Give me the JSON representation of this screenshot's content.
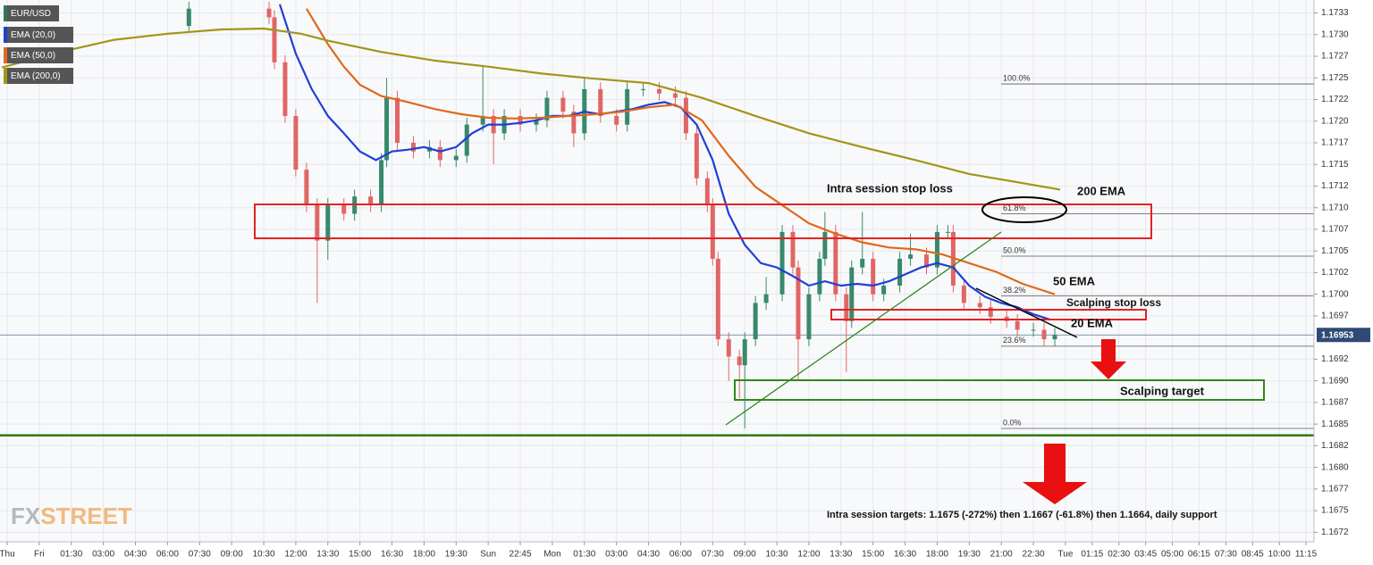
{
  "chart_data": {
    "type": "candlestick",
    "symbol": "EUR/USD",
    "xlim": [
      -1.34,
      244.5
    ],
    "ylim": [
      1.16714,
      1.1734
    ],
    "grid": true,
    "up_color": "#38896b",
    "down_color": "#e06666",
    "yticks": [
      {
        "value": 1.17325,
        "label": "1.1733"
      },
      {
        "value": 1.173,
        "label": "1.1730"
      },
      {
        "value": 1.17275,
        "label": "1.1727"
      },
      {
        "value": 1.1725,
        "label": "1.1725"
      },
      {
        "value": 1.17225,
        "label": "1.1722"
      },
      {
        "value": 1.172,
        "label": "1.1720"
      },
      {
        "value": 1.17175,
        "label": "1.1717"
      },
      {
        "value": 1.1715,
        "label": "1.1715"
      },
      {
        "value": 1.17125,
        "label": "1.1712"
      },
      {
        "value": 1.171,
        "label": "1.1710"
      },
      {
        "value": 1.17075,
        "label": "1.1707"
      },
      {
        "value": 1.1705,
        "label": "1.1705"
      },
      {
        "value": 1.17025,
        "label": "1.1702"
      },
      {
        "value": 1.17,
        "label": "1.1700"
      },
      {
        "value": 1.16975,
        "label": "1.1697"
      },
      {
        "value": 1.16925,
        "label": "1.1692"
      },
      {
        "value": 1.169,
        "label": "1.1690"
      },
      {
        "value": 1.16875,
        "label": "1.1687"
      },
      {
        "value": 1.1685,
        "label": "1.1685"
      },
      {
        "value": 1.16825,
        "label": "1.1682"
      },
      {
        "value": 1.168,
        "label": "1.1680"
      },
      {
        "value": 1.16775,
        "label": "1.1677"
      },
      {
        "value": 1.1675,
        "label": "1.1675"
      },
      {
        "value": 1.16725,
        "label": "1.1672"
      }
    ],
    "xticks": [
      {
        "value": 0,
        "label": "Thu"
      },
      {
        "value": 6,
        "label": "Fri"
      },
      {
        "value": 12,
        "label": "01:30"
      },
      {
        "value": 18,
        "label": "03:00"
      },
      {
        "value": 24,
        "label": "04:30"
      },
      {
        "value": 30,
        "label": "06:00"
      },
      {
        "value": 36,
        "label": "07:30"
      },
      {
        "value": 42,
        "label": "09:00"
      },
      {
        "value": 48,
        "label": "10:30"
      },
      {
        "value": 54,
        "label": "12:00"
      },
      {
        "value": 60,
        "label": "13:30"
      },
      {
        "value": 66,
        "label": "15:00"
      },
      {
        "value": 72,
        "label": "16:30"
      },
      {
        "value": 78,
        "label": "18:00"
      },
      {
        "value": 84,
        "label": "19:30"
      },
      {
        "value": 90,
        "label": "Sun"
      },
      {
        "value": 96,
        "label": "22:45"
      },
      {
        "value": 102,
        "label": "Mon"
      },
      {
        "value": 108,
        "label": "01:30"
      },
      {
        "value": 114,
        "label": "03:00"
      },
      {
        "value": 120,
        "label": "04:30"
      },
      {
        "value": 126,
        "label": "06:00"
      },
      {
        "value": 132,
        "label": "07:30"
      },
      {
        "value": 138,
        "label": "09:00"
      },
      {
        "value": 144,
        "label": "10:30"
      },
      {
        "value": 150,
        "label": "12:00"
      },
      {
        "value": 156,
        "label": "13:30"
      },
      {
        "value": 162,
        "label": "15:00"
      },
      {
        "value": 168,
        "label": "16:30"
      },
      {
        "value": 174,
        "label": "18:00"
      },
      {
        "value": 180,
        "label": "19:30"
      },
      {
        "value": 186,
        "label": "21:00"
      },
      {
        "value": 192,
        "label": "22:30"
      },
      {
        "value": 198,
        "label": "Tue"
      },
      {
        "value": 203,
        "label": "01:15"
      },
      {
        "value": 208,
        "label": "02:30"
      },
      {
        "value": 213,
        "label": "03:45"
      },
      {
        "value": 218,
        "label": "05:00"
      },
      {
        "value": 223,
        "label": "06:15"
      },
      {
        "value": 228,
        "label": "07:30"
      },
      {
        "value": 233,
        "label": "08:45"
      },
      {
        "value": 238,
        "label": "10:00"
      },
      {
        "value": 243,
        "label": "11:15"
      }
    ],
    "candles": [
      [
        34,
        1.1731,
        1.17338,
        1.17302,
        1.1733
      ],
      [
        49,
        1.1733,
        1.17338,
        1.17312,
        1.1732
      ],
      [
        50,
        1.1732,
        1.17328,
        1.1726,
        1.17268
      ],
      [
        52,
        1.17268,
        1.17276,
        1.17198,
        1.17206
      ],
      [
        54,
        1.17206,
        1.17214,
        1.17136,
        1.17144
      ],
      [
        56,
        1.17144,
        1.17152,
        1.17095,
        1.17103
      ],
      [
        58,
        1.17103,
        1.17111,
        1.1699,
        1.17062
      ],
      [
        60,
        1.17062,
        1.17111,
        1.1704,
        1.17103
      ],
      [
        63,
        1.17103,
        1.17111,
        1.17085,
        1.17093
      ],
      [
        65,
        1.17093,
        1.17121,
        1.17085,
        1.17113
      ],
      [
        68,
        1.17113,
        1.17121,
        1.17095,
        1.17103
      ],
      [
        70,
        1.17103,
        1.17163,
        1.17095,
        1.17155
      ],
      [
        71,
        1.17155,
        1.1725,
        1.17147,
        1.17227
      ],
      [
        73,
        1.17227,
        1.17235,
        1.17167,
        1.17175
      ],
      [
        76,
        1.17175,
        1.17183,
        1.17157,
        1.17165
      ],
      [
        79,
        1.17165,
        1.17178,
        1.17157,
        1.1717
      ],
      [
        81,
        1.1717,
        1.17178,
        1.17147,
        1.17155
      ],
      [
        84,
        1.17155,
        1.17168,
        1.17147,
        1.1716
      ],
      [
        86,
        1.1716,
        1.17204,
        1.17152,
        1.17196
      ],
      [
        89,
        1.17196,
        1.17265,
        1.17188,
        1.17206
      ],
      [
        91,
        1.17206,
        1.17214,
        1.1715,
        1.17186
      ],
      [
        93,
        1.17186,
        1.17214,
        1.17178,
        1.17206
      ],
      [
        96,
        1.17206,
        1.17214,
        1.17188,
        1.17196
      ],
      [
        99,
        1.17196,
        1.17209,
        1.17188,
        1.17201
      ],
      [
        101,
        1.17201,
        1.17235,
        1.17193,
        1.17227
      ],
      [
        104,
        1.17227,
        1.17235,
        1.17203,
        1.17211
      ],
      [
        106,
        1.17211,
        1.17219,
        1.1717,
        1.17186
      ],
      [
        108,
        1.17186,
        1.1725,
        1.17178,
        1.17237
      ],
      [
        111,
        1.17237,
        1.17245,
        1.17198,
        1.17206
      ],
      [
        114,
        1.17206,
        1.17214,
        1.17188,
        1.17196
      ],
      [
        116,
        1.17196,
        1.17245,
        1.17188,
        1.17237
      ],
      [
        119,
        1.17237,
        1.17245,
        1.17229,
        1.17237
      ],
      [
        122,
        1.17237,
        1.17245,
        1.17224,
        1.17232
      ],
      [
        125,
        1.17232,
        1.1724,
        1.17219,
        1.17227
      ],
      [
        127,
        1.17227,
        1.17235,
        1.17178,
        1.17186
      ],
      [
        129,
        1.17186,
        1.17194,
        1.17126,
        1.17134
      ],
      [
        131,
        1.17134,
        1.17142,
        1.17095,
        1.17103
      ],
      [
        132,
        1.17103,
        1.17111,
        1.17033,
        1.17041
      ],
      [
        133,
        1.17041,
        1.17049,
        1.1694,
        1.16948
      ],
      [
        135,
        1.16948,
        1.16956,
        1.169,
        1.16928
      ],
      [
        137,
        1.16928,
        1.16936,
        1.1688,
        1.16918
      ],
      [
        138,
        1.16918,
        1.16956,
        1.16845,
        1.16948
      ],
      [
        140,
        1.16948,
        1.16998,
        1.1694,
        1.1699
      ],
      [
        142,
        1.1699,
        1.1702,
        1.16982,
        1.17
      ],
      [
        145,
        1.17,
        1.1708,
        1.16992,
        1.17072
      ],
      [
        147,
        1.17072,
        1.1708,
        1.17023,
        1.17031
      ],
      [
        148,
        1.17031,
        1.17039,
        1.169,
        1.16948
      ],
      [
        150,
        1.16948,
        1.17008,
        1.1694,
        1.17
      ],
      [
        152,
        1.17,
        1.17049,
        1.16992,
        1.17041
      ],
      [
        153,
        1.17041,
        1.17095,
        1.17033,
        1.17072
      ],
      [
        155,
        1.17072,
        1.1708,
        1.16992,
        1.17
      ],
      [
        157,
        1.17,
        1.17008,
        1.1691,
        1.16969
      ],
      [
        158,
        1.16969,
        1.17039,
        1.16961,
        1.17031
      ],
      [
        160,
        1.17031,
        1.17095,
        1.17023,
        1.17041
      ],
      [
        162,
        1.17041,
        1.17049,
        1.16992,
        1.17
      ],
      [
        164,
        1.17,
        1.17018,
        1.16992,
        1.1701
      ],
      [
        167,
        1.1701,
        1.17049,
        1.17002,
        1.17041
      ],
      [
        169,
        1.17041,
        1.1707,
        1.17033,
        1.17046
      ],
      [
        172,
        1.17046,
        1.17054,
        1.17023,
        1.17031
      ],
      [
        174,
        1.17031,
        1.1708,
        1.17023,
        1.17072
      ],
      [
        176,
        1.17072,
        1.1708,
        1.17064,
        1.17072
      ],
      [
        177,
        1.17072,
        1.1708,
        1.17002,
        1.1701
      ],
      [
        179,
        1.1701,
        1.17018,
        1.16982,
        1.1699
      ],
      [
        182,
        1.1699,
        1.16998,
        1.16977,
        1.16985
      ],
      [
        184,
        1.16985,
        1.16993,
        1.16966,
        1.16974
      ],
      [
        187,
        1.16974,
        1.16982,
        1.16961,
        1.16969
      ],
      [
        189,
        1.16969,
        1.16977,
        1.16951,
        1.16959
      ],
      [
        192,
        1.16959,
        1.16967,
        1.16951,
        1.16959
      ],
      [
        194,
        1.16959,
        1.16967,
        1.1694,
        1.16948
      ],
      [
        196,
        1.16948,
        1.16961,
        1.1694,
        1.16953
      ]
    ],
    "series": [
      {
        "name": "EMA (20,0)",
        "color": "#1f3fd6",
        "x": [
          51,
          54,
          57,
          60,
          63,
          66,
          69,
          72,
          75,
          78,
          81,
          84,
          87,
          90,
          93,
          96,
          99,
          102,
          105,
          108,
          111,
          114,
          117,
          120,
          123,
          126,
          129,
          132,
          135,
          138,
          141,
          144,
          147,
          150,
          153,
          156,
          159,
          162,
          165,
          168,
          171,
          174,
          177,
          180,
          183,
          186,
          189,
          192,
          195
        ],
        "values": [
          1.17335,
          1.17278,
          1.17237,
          1.17206,
          1.17186,
          1.17165,
          1.17155,
          1.17165,
          1.17167,
          1.1717,
          1.17165,
          1.1717,
          1.17186,
          1.17196,
          1.17196,
          1.17198,
          1.17201,
          1.17206,
          1.17206,
          1.17211,
          1.17208,
          1.17211,
          1.17214,
          1.17219,
          1.17222,
          1.17216,
          1.17196,
          1.17155,
          1.17093,
          1.17057,
          1.17036,
          1.17031,
          1.17021,
          1.1701,
          1.17015,
          1.1701,
          1.17012,
          1.1701,
          1.17015,
          1.17023,
          1.17031,
          1.17036,
          1.17031,
          1.1701,
          1.16997,
          1.1699,
          1.16985,
          1.16977,
          1.16971
        ]
      },
      {
        "name": "EMA (50,0)",
        "color": "#e0681c",
        "x": [
          56,
          60,
          63,
          66,
          70,
          75,
          80,
          85,
          90,
          95,
          100,
          105,
          110,
          115,
          120,
          125,
          130,
          135,
          140,
          145,
          150,
          155,
          160,
          165,
          170,
          175,
          180,
          185,
          190,
          196
        ],
        "values": [
          1.1733,
          1.17289,
          1.17263,
          1.17242,
          1.17229,
          1.17222,
          1.17214,
          1.17208,
          1.17204,
          1.17203,
          1.17204,
          1.17206,
          1.17208,
          1.17211,
          1.17216,
          1.17219,
          1.17201,
          1.1716,
          1.17124,
          1.17103,
          1.17082,
          1.1707,
          1.1706,
          1.17054,
          1.17052,
          1.17046,
          1.17036,
          1.17026,
          1.17012,
          1.17
        ]
      },
      {
        "name": "EMA (200,0)",
        "color": "#a39519",
        "x": [
          -1,
          10,
          20,
          30,
          40,
          48,
          55,
          60,
          70,
          80,
          90,
          100,
          110,
          120,
          130,
          140,
          150,
          160,
          170,
          180,
          197
        ],
        "values": [
          1.17262,
          1.1728,
          1.17294,
          1.17301,
          1.17306,
          1.17307,
          1.17301,
          1.17293,
          1.1728,
          1.1727,
          1.17263,
          1.17255,
          1.17249,
          1.17244,
          1.17227,
          1.17206,
          1.17186,
          1.1717,
          1.17155,
          1.17139,
          1.17121
        ]
      }
    ],
    "fib_levels": [
      {
        "label": "100.0%",
        "value": 1.17243
      },
      {
        "label": "61.8%",
        "value": 1.17093
      },
      {
        "label": "50.0%",
        "value": 1.17044
      },
      {
        "label": "38.2%",
        "value": 1.16998
      },
      {
        "label": "23.6%",
        "value": 1.1694
      },
      {
        "label": "0.0%",
        "value": 1.16845
      }
    ],
    "current_price": 1.16953,
    "support": 1.16837,
    "annotations": [
      "Intra session stop loss",
      "200 EMA",
      "50 EMA",
      "Scalping stop loss",
      "20 EMA",
      "Scalping target",
      "Intra session targets: 1.1675 (-272%) then 1.1667 (-61.8%) then 1.1664, daily support"
    ],
    "watermark": [
      "FX",
      "STREET"
    ]
  }
}
